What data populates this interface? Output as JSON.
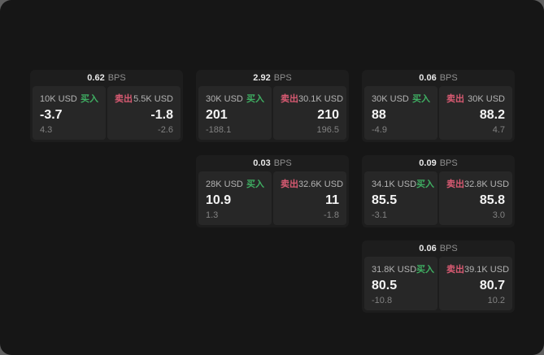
{
  "labels": {
    "bps_unit": "BPS",
    "buy": "买入",
    "sell": "卖出"
  },
  "colors": {
    "buy_accent": "#3fae62",
    "sell_accent": "#d85a72",
    "window_background": "#161616",
    "card_background": "#1d1d1d",
    "pane_background": "#272727"
  },
  "cards": [
    {
      "bps": "0.62",
      "grid": {
        "row": 1,
        "col": 1
      },
      "buy": {
        "size": "10K USD",
        "value": "-3.7",
        "change": "4.3"
      },
      "sell": {
        "size": "5.5K USD",
        "value": "-1.8",
        "change": "-2.6"
      }
    },
    {
      "bps": "2.92",
      "grid": {
        "row": 1,
        "col": 2
      },
      "buy": {
        "size": "30K USD",
        "value": "201",
        "change": "-188.1"
      },
      "sell": {
        "size": "30.1K USD",
        "value": "210",
        "change": "196.5"
      }
    },
    {
      "bps": "0.06",
      "grid": {
        "row": 1,
        "col": 3
      },
      "buy": {
        "size": "30K USD",
        "value": "88",
        "change": "-4.9"
      },
      "sell": {
        "size": "30K USD",
        "value": "88.2",
        "change": "4.7"
      }
    },
    {
      "bps": "0.03",
      "grid": {
        "row": 2,
        "col": 2
      },
      "buy": {
        "size": "28K USD",
        "value": "10.9",
        "change": "1.3"
      },
      "sell": {
        "size": "32.6K USD",
        "value": "11",
        "change": "-1.8"
      }
    },
    {
      "bps": "0.09",
      "grid": {
        "row": 2,
        "col": 3
      },
      "buy": {
        "size": "34.1K USD",
        "value": "85.5",
        "change": "-3.1"
      },
      "sell": {
        "size": "32.8K USD",
        "value": "85.8",
        "change": "3.0"
      }
    },
    {
      "bps": "0.06",
      "grid": {
        "row": 3,
        "col": 3
      },
      "buy": {
        "size": "31.8K USD",
        "value": "80.5",
        "change": "-10.8"
      },
      "sell": {
        "size": "39.1K USD",
        "value": "80.7",
        "change": "10.2"
      }
    }
  ]
}
